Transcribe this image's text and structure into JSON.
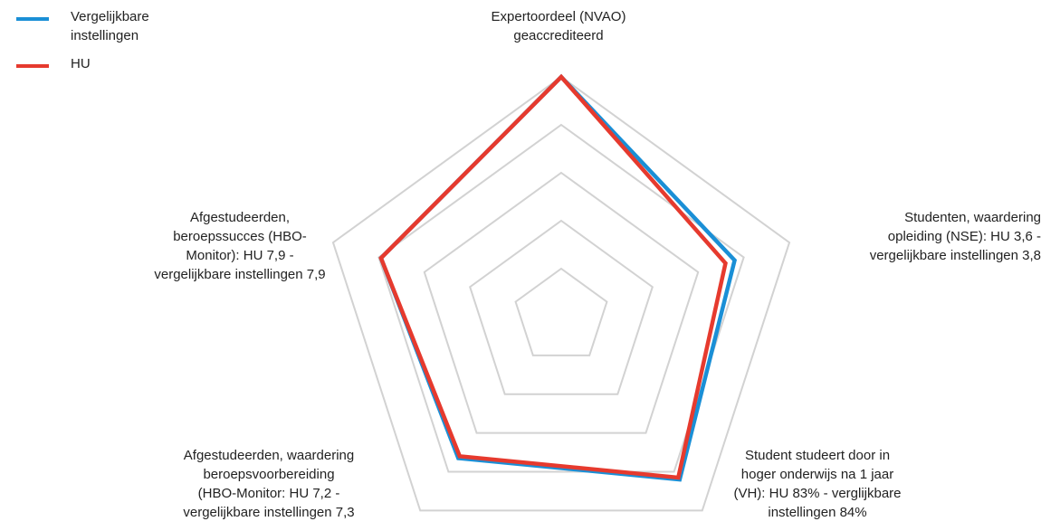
{
  "chart_data": {
    "type": "radar",
    "axes": [
      "Expertoordeel (NVAO)\ngeaccrediteerd",
      "Studenten, waardering\nopleiding (NSE): HU 3,6 -\nvergelijkbare instellingen 3,8",
      "Student studeert door in\nhoger onderwijs na 1 jaar\n(VH): HU 83% - verglijkbare\ninstellingen 84%",
      "Afgestudeerden, waardering\nberoepsvoorbereiding\n(HBO-Monitor: HU 7,2 -\nvergelijkbare instellingen 7,3",
      "Afgestudeerden,\nberoepssucces (HBO-\nMonitor): HU 7,9 -\nvergelijkbare instellingen 7,9"
    ],
    "rlim": [
      0,
      1
    ],
    "grid": true,
    "grid_levels": 5,
    "legend_position": "top-left",
    "series": [
      {
        "name": "Vergelijkbare\ninstellingen",
        "color": "#1a8fd6",
        "values": [
          1.0,
          0.76,
          0.84,
          0.73,
          0.79
        ]
      },
      {
        "name": "HU",
        "color": "#e63a2e",
        "values": [
          1.0,
          0.72,
          0.83,
          0.72,
          0.79
        ]
      }
    ]
  }
}
